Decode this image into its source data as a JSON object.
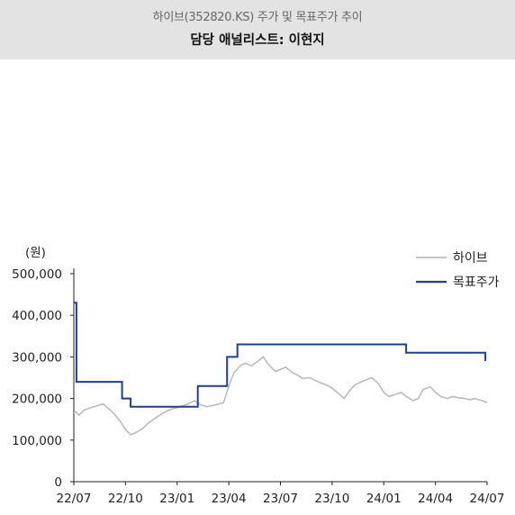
{
  "header": {
    "subtitle": "하이브(352820.KS) 주가 및 목표주가 추이",
    "title": "담당 애널리스트: 이현지"
  },
  "chart_data": {
    "type": "line",
    "ylabel": "(원)",
    "ylim": [
      0,
      500000
    ],
    "yticks": [
      0,
      100000,
      200000,
      300000,
      400000,
      500000
    ],
    "ytick_labels": [
      "0",
      "100,000",
      "200,000",
      "300,000",
      "400,000",
      "500,000"
    ],
    "xlim": [
      "2022-07",
      "2024-07"
    ],
    "xtick_labels": [
      "22/07",
      "22/10",
      "23/01",
      "23/04",
      "23/07",
      "23/10",
      "24/01",
      "24/04",
      "24/07"
    ],
    "legend_position": "top-right",
    "series": [
      {
        "name": "하이브",
        "color": "#bbbbbb",
        "x": [
          0,
          0.1,
          0.3,
          0.6,
          1.0,
          1.3,
          1.7,
          2.0,
          2.3,
          2.7,
          3.0,
          3.3,
          3.6,
          4.0,
          4.3,
          4.7,
          5.0,
          5.3,
          5.7,
          6.0,
          6.3,
          6.7,
          7.0,
          7.3,
          7.7,
          8.0,
          8.3,
          8.5,
          8.7,
          9.0,
          9.3,
          9.7,
          10.0,
          10.3,
          10.7,
          11.0,
          11.3,
          11.7,
          12.0,
          12.3,
          12.7,
          13.0,
          13.3,
          13.7,
          14.0,
          14.3,
          14.7,
          15.0,
          15.3,
          15.7,
          16.0,
          16.3,
          16.7,
          17.0,
          17.3,
          17.7,
          18.0,
          18.3,
          18.7,
          19.0,
          19.3,
          19.7,
          20.0,
          20.3,
          20.7,
          21.0,
          21.3,
          21.7,
          22.0,
          22.3,
          22.7,
          23.0,
          23.3,
          23.7,
          24.0
        ],
        "values": [
          165000,
          168000,
          160000,
          172000,
          178000,
          182000,
          187000,
          176000,
          165000,
          145000,
          125000,
          113000,
          118000,
          128000,
          140000,
          152000,
          160000,
          168000,
          175000,
          178000,
          182000,
          188000,
          195000,
          186000,
          180000,
          183000,
          185000,
          188000,
          190000,
          230000,
          262000,
          280000,
          285000,
          278000,
          290000,
          300000,
          282000,
          265000,
          270000,
          275000,
          262000,
          256000,
          248000,
          250000,
          244000,
          238000,
          232000,
          225000,
          215000,
          200000,
          218000,
          232000,
          240000,
          245000,
          250000,
          235000,
          215000,
          205000,
          210000,
          215000,
          205000,
          195000,
          200000,
          222000,
          228000,
          215000,
          205000,
          200000,
          205000,
          202000,
          200000,
          197000,
          200000,
          195000,
          190000
        ]
      },
      {
        "name": "목표주가",
        "color": "#1f3f94",
        "step_x": [
          0,
          0.15,
          0.15,
          2.8,
          2.8,
          3.3,
          3.3,
          7.2,
          7.2,
          8.9,
          8.9,
          9.5,
          9.5,
          19.3,
          19.3,
          23.9,
          23.9
        ],
        "step_values": [
          430000,
          430000,
          240000,
          240000,
          200000,
          200000,
          180000,
          180000,
          230000,
          230000,
          300000,
          300000,
          330000,
          330000,
          310000,
          310000,
          290000
        ]
      }
    ]
  }
}
